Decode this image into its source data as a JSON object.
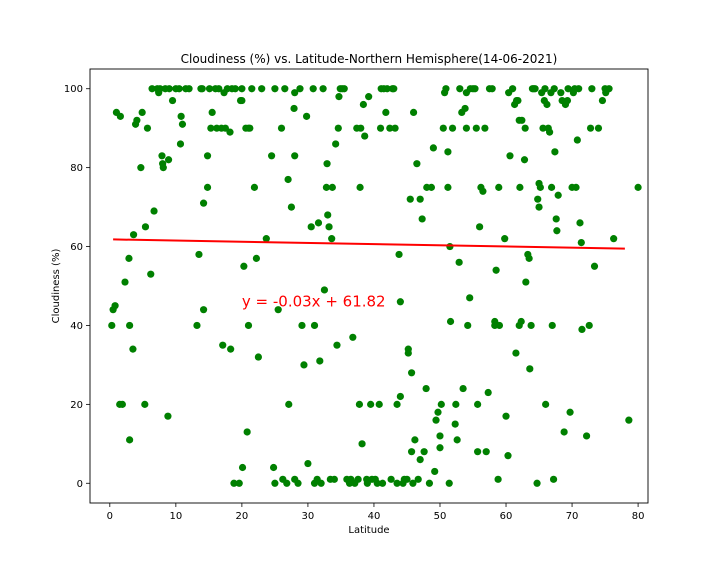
{
  "chart_data": {
    "type": "scatter",
    "title": "Cloudiness (%) vs. Latitude-Northern Hemisphere(14-06-2021)",
    "xlabel": "Latitude",
    "ylabel": "Cloudiness (%)",
    "xlim": [
      -3,
      81.5
    ],
    "ylim": [
      -5,
      105
    ],
    "xticks": [
      0,
      10,
      20,
      30,
      40,
      50,
      60,
      70,
      80
    ],
    "yticks": [
      0,
      20,
      40,
      60,
      80,
      100
    ],
    "grid": false,
    "legend": "none",
    "point_color": "#008000",
    "line_color": "#ff0000",
    "annotation": {
      "text": "y = -0.03x + 61.82",
      "x": 20,
      "y": 45
    },
    "regression": {
      "slope": -0.03,
      "intercept": 61.82,
      "x_range": [
        0.5,
        78
      ]
    },
    "points": [
      [
        0.3,
        40
      ],
      [
        0.5,
        44
      ],
      [
        0.8,
        45
      ],
      [
        1,
        94
      ],
      [
        1.6,
        93
      ],
      [
        1.5,
        20
      ],
      [
        1.9,
        20
      ],
      [
        2.3,
        51
      ],
      [
        2.9,
        57
      ],
      [
        3,
        11
      ],
      [
        3,
        40
      ],
      [
        3.5,
        34
      ],
      [
        3.6,
        63
      ],
      [
        3.9,
        91
      ],
      [
        4.1,
        92
      ],
      [
        4.7,
        80
      ],
      [
        4.9,
        94
      ],
      [
        5.3,
        20
      ],
      [
        5.4,
        65
      ],
      [
        5.7,
        90
      ],
      [
        6.2,
        53
      ],
      [
        6.4,
        100
      ],
      [
        6.7,
        69
      ],
      [
        7.2,
        100
      ],
      [
        7.4,
        99
      ],
      [
        7.6,
        100
      ],
      [
        7.9,
        83
      ],
      [
        8,
        81
      ],
      [
        8.1,
        80
      ],
      [
        8.4,
        100
      ],
      [
        8.8,
        17
      ],
      [
        8.9,
        82
      ],
      [
        9,
        100
      ],
      [
        9.5,
        97
      ],
      [
        10,
        100
      ],
      [
        10.5,
        100
      ],
      [
        10.7,
        86
      ],
      [
        10.8,
        93
      ],
      [
        11,
        91
      ],
      [
        11.5,
        100
      ],
      [
        12,
        100
      ],
      [
        13.2,
        40
      ],
      [
        13.5,
        58
      ],
      [
        13.8,
        100
      ],
      [
        14,
        100
      ],
      [
        14.2,
        44
      ],
      [
        14.2,
        71
      ],
      [
        14.8,
        75
      ],
      [
        14.8,
        83
      ],
      [
        15.1,
        100
      ],
      [
        15.3,
        90
      ],
      [
        15.5,
        94
      ],
      [
        16,
        100
      ],
      [
        16.2,
        90
      ],
      [
        16.5,
        100
      ],
      [
        16.9,
        90
      ],
      [
        17.1,
        35
      ],
      [
        17.3,
        99
      ],
      [
        17.5,
        90
      ],
      [
        17.8,
        100
      ],
      [
        18.2,
        89
      ],
      [
        18.3,
        34
      ],
      [
        18.5,
        100
      ],
      [
        19,
        100
      ],
      [
        18.8,
        0
      ],
      [
        19.6,
        0
      ],
      [
        19.8,
        97
      ],
      [
        20,
        100
      ],
      [
        20.1,
        4
      ],
      [
        20,
        97
      ],
      [
        20.3,
        55
      ],
      [
        20.6,
        90
      ],
      [
        20.8,
        13
      ],
      [
        21,
        90
      ],
      [
        21,
        40
      ],
      [
        21.2,
        90
      ],
      [
        21.5,
        100
      ],
      [
        21.9,
        75
      ],
      [
        22.2,
        57
      ],
      [
        22.5,
        32
      ],
      [
        23,
        100
      ],
      [
        23.7,
        62
      ],
      [
        24.5,
        83
      ],
      [
        24.8,
        4
      ],
      [
        25,
        100
      ],
      [
        25,
        0
      ],
      [
        25.5,
        44
      ],
      [
        26,
        90
      ],
      [
        26.2,
        1
      ],
      [
        26.5,
        100
      ],
      [
        26.8,
        0
      ],
      [
        27,
        77
      ],
      [
        27.1,
        20
      ],
      [
        27.5,
        70
      ],
      [
        27.9,
        95
      ],
      [
        28,
        99
      ],
      [
        28,
        83
      ],
      [
        28,
        1
      ],
      [
        28.5,
        0
      ],
      [
        28.8,
        100
      ],
      [
        29.1,
        40
      ],
      [
        29.4,
        30
      ],
      [
        29.8,
        93
      ],
      [
        30,
        5
      ],
      [
        30.5,
        65
      ],
      [
        30.8,
        100
      ],
      [
        31,
        0
      ],
      [
        31,
        40
      ],
      [
        31.4,
        1
      ],
      [
        31.6,
        66
      ],
      [
        31.8,
        31
      ],
      [
        32,
        0
      ],
      [
        32.3,
        100
      ],
      [
        32.5,
        49
      ],
      [
        32.8,
        75
      ],
      [
        32.9,
        81
      ],
      [
        33,
        68
      ],
      [
        33.2,
        65
      ],
      [
        33.4,
        1
      ],
      [
        33.6,
        62
      ],
      [
        33.7,
        75
      ],
      [
        34,
        1
      ],
      [
        34.2,
        86
      ],
      [
        34.4,
        35
      ],
      [
        34.6,
        90
      ],
      [
        34.7,
        98
      ],
      [
        34.9,
        100
      ],
      [
        35.2,
        100
      ],
      [
        35.5,
        100
      ],
      [
        35.9,
        1
      ],
      [
        36.3,
        0
      ],
      [
        36.5,
        1
      ],
      [
        36.8,
        37
      ],
      [
        37.1,
        0
      ],
      [
        37.4,
        90
      ],
      [
        37.6,
        1
      ],
      [
        37.8,
        20
      ],
      [
        37.9,
        75
      ],
      [
        38,
        90
      ],
      [
        38.2,
        10
      ],
      [
        38.4,
        96
      ],
      [
        38.6,
        88
      ],
      [
        38.9,
        1
      ],
      [
        39,
        0
      ],
      [
        39.2,
        98
      ],
      [
        39.5,
        20
      ],
      [
        39.7,
        1
      ],
      [
        40.2,
        1
      ],
      [
        40.5,
        0
      ],
      [
        40.8,
        20
      ],
      [
        41,
        90
      ],
      [
        41.1,
        100
      ],
      [
        41.3,
        0
      ],
      [
        41.5,
        100
      ],
      [
        41.8,
        94
      ],
      [
        42,
        100
      ],
      [
        42.4,
        90
      ],
      [
        42.6,
        1
      ],
      [
        42.8,
        100
      ],
      [
        43,
        100
      ],
      [
        43.2,
        90
      ],
      [
        43.5,
        20
      ],
      [
        43.5,
        0
      ],
      [
        43.8,
        58
      ],
      [
        44,
        46
      ],
      [
        44,
        22
      ],
      [
        44.4,
        0
      ],
      [
        44.6,
        1
      ],
      [
        45,
        1
      ],
      [
        45.2,
        34
      ],
      [
        45.2,
        33
      ],
      [
        45.5,
        72
      ],
      [
        45.7,
        28
      ],
      [
        45.7,
        8
      ],
      [
        45.9,
        0
      ],
      [
        46,
        94
      ],
      [
        46.2,
        11
      ],
      [
        46.5,
        81
      ],
      [
        46.7,
        1
      ],
      [
        47,
        72
      ],
      [
        47,
        6
      ],
      [
        47.3,
        67
      ],
      [
        47.6,
        8
      ],
      [
        47.9,
        24
      ],
      [
        48,
        75
      ],
      [
        48.4,
        0
      ],
      [
        48.7,
        75
      ],
      [
        49,
        85
      ],
      [
        49.2,
        3
      ],
      [
        49.4,
        16
      ],
      [
        49.7,
        18
      ],
      [
        50,
        9
      ],
      [
        50,
        12
      ],
      [
        50.2,
        20
      ],
      [
        50.5,
        90
      ],
      [
        50.7,
        99
      ],
      [
        50.9,
        100
      ],
      [
        51.2,
        84
      ],
      [
        51.2,
        75
      ],
      [
        51.4,
        0
      ],
      [
        51.5,
        60
      ],
      [
        51.6,
        41
      ],
      [
        51.9,
        90
      ],
      [
        52.3,
        15
      ],
      [
        52.4,
        20
      ],
      [
        52.6,
        11
      ],
      [
        52.9,
        56
      ],
      [
        53,
        100
      ],
      [
        53.3,
        94
      ],
      [
        53.5,
        24
      ],
      [
        53.8,
        95
      ],
      [
        54,
        99
      ],
      [
        54,
        90
      ],
      [
        54.2,
        40
      ],
      [
        54.5,
        47
      ],
      [
        54.6,
        100
      ],
      [
        55,
        100
      ],
      [
        55.3,
        100
      ],
      [
        55.5,
        90
      ],
      [
        55.7,
        20
      ],
      [
        55.7,
        8
      ],
      [
        56,
        65
      ],
      [
        56.2,
        75
      ],
      [
        56.5,
        74
      ],
      [
        56.8,
        90
      ],
      [
        57,
        8
      ],
      [
        57.3,
        23
      ],
      [
        57.5,
        100
      ],
      [
        57.9,
        100
      ],
      [
        58.3,
        41
      ],
      [
        58.3,
        40
      ],
      [
        58.5,
        54
      ],
      [
        58.8,
        1
      ],
      [
        58.9,
        75
      ],
      [
        59,
        40
      ],
      [
        59.8,
        62
      ],
      [
        60,
        17
      ],
      [
        60.3,
        7
      ],
      [
        60.4,
        99
      ],
      [
        60.6,
        83
      ],
      [
        61,
        100
      ],
      [
        61.3,
        96
      ],
      [
        61.5,
        33
      ],
      [
        61.6,
        97
      ],
      [
        61.8,
        97
      ],
      [
        62,
        40
      ],
      [
        62,
        92
      ],
      [
        62.1,
        75
      ],
      [
        62.3,
        41
      ],
      [
        62.4,
        92
      ],
      [
        62.8,
        82
      ],
      [
        62.9,
        90
      ],
      [
        63,
        51
      ],
      [
        63.3,
        58
      ],
      [
        63.5,
        57
      ],
      [
        63.6,
        29
      ],
      [
        63.8,
        40
      ],
      [
        64,
        100
      ],
      [
        64.2,
        100
      ],
      [
        64.4,
        100
      ],
      [
        64.7,
        0
      ],
      [
        64.8,
        72
      ],
      [
        65,
        70
      ],
      [
        65,
        76
      ],
      [
        65.2,
        75
      ],
      [
        65.4,
        99
      ],
      [
        65.6,
        90
      ],
      [
        65.8,
        97
      ],
      [
        65.9,
        100
      ],
      [
        66,
        20
      ],
      [
        66.2,
        96
      ],
      [
        66.4,
        90
      ],
      [
        66.6,
        89
      ],
      [
        66.8,
        99
      ],
      [
        66.9,
        75
      ],
      [
        67,
        40
      ],
      [
        67.2,
        1
      ],
      [
        67.3,
        100
      ],
      [
        67.4,
        84
      ],
      [
        67.6,
        67
      ],
      [
        67.7,
        64
      ],
      [
        67.9,
        73
      ],
      [
        68.3,
        99
      ],
      [
        68.5,
        97
      ],
      [
        68.8,
        13
      ],
      [
        69,
        96
      ],
      [
        69.3,
        97
      ],
      [
        69.4,
        100
      ],
      [
        69.7,
        18
      ],
      [
        70,
        75
      ],
      [
        70.2,
        99
      ],
      [
        70.4,
        100
      ],
      [
        70.6,
        75
      ],
      [
        70.8,
        87
      ],
      [
        71,
        100
      ],
      [
        71.2,
        66
      ],
      [
        71.4,
        61
      ],
      [
        71.5,
        39
      ],
      [
        72.2,
        12
      ],
      [
        72.6,
        40
      ],
      [
        72.8,
        90
      ],
      [
        73,
        100
      ],
      [
        73.4,
        55
      ],
      [
        74,
        90
      ],
      [
        74.6,
        97
      ],
      [
        75,
        100
      ],
      [
        75.1,
        99
      ],
      [
        75.6,
        100
      ],
      [
        76.3,
        62
      ],
      [
        78.6,
        16
      ],
      [
        80,
        75
      ]
    ]
  }
}
